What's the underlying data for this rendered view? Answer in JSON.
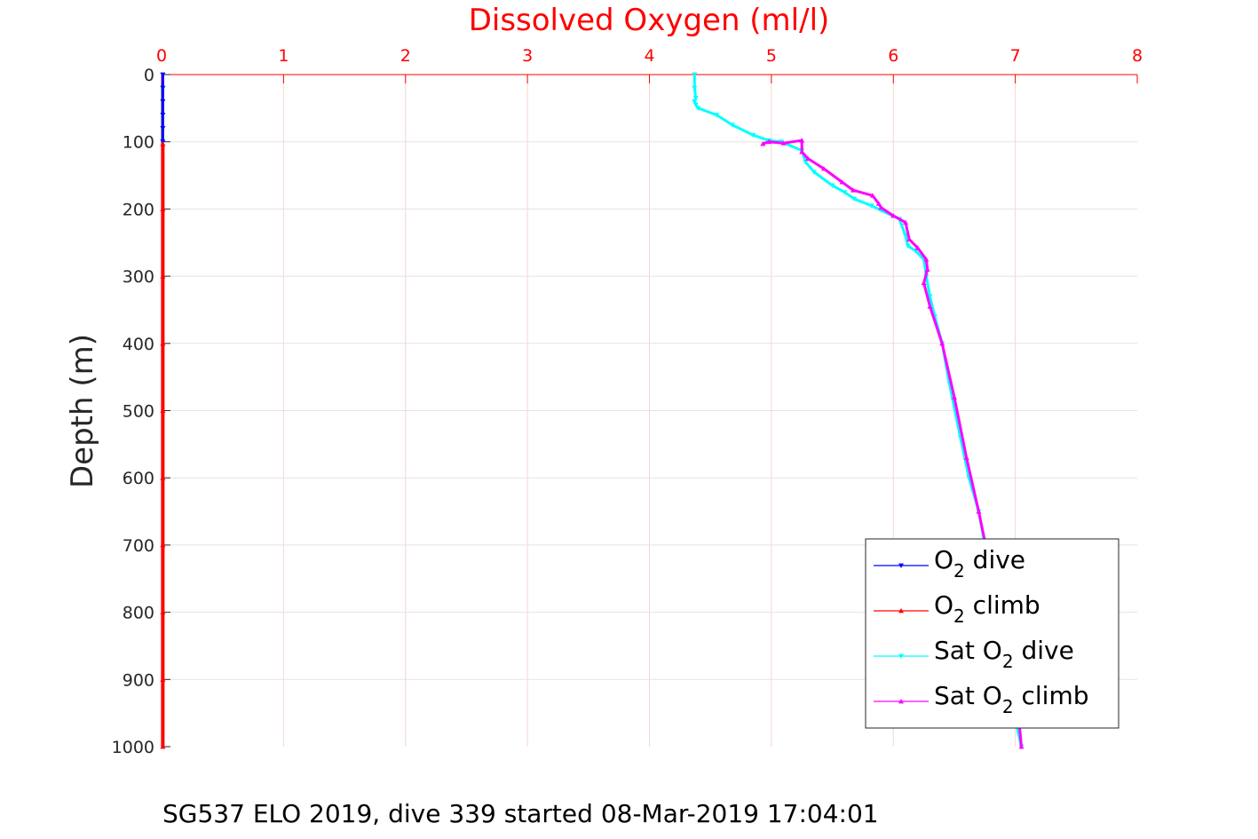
{
  "chart_data": {
    "type": "line",
    "title": "Dissolved Oxygen (ml/l)",
    "xlabel": "",
    "ylabel": "Depth (m)",
    "caption": "SG537 ELO 2019, dive 339 started 08-Mar-2019 17:04:01",
    "xlim": [
      0,
      8
    ],
    "ylim": [
      0,
      1000
    ],
    "y_reversed": true,
    "x_axis_location": "top",
    "grid": true,
    "xticks": [
      "0",
      "1",
      "2",
      "3",
      "4",
      "5",
      "6",
      "7",
      "8"
    ],
    "yticks": [
      "0",
      "100",
      "200",
      "300",
      "400",
      "500",
      "600",
      "700",
      "800",
      "900",
      "1000"
    ],
    "legend_position": "bottom-right",
    "series": [
      {
        "name": "O2 dive",
        "legend_base": "O",
        "legend_sub": "2",
        "legend_tail": " dive",
        "color": "#0000ff",
        "marker": "triangle-down",
        "x": [
          0.01,
          0.01,
          0.01,
          0.01,
          0.01,
          0.01
        ],
        "y": [
          0,
          20,
          40,
          60,
          80,
          100
        ]
      },
      {
        "name": "O2 climb",
        "legend_base": "O",
        "legend_sub": "2",
        "legend_tail": " climb",
        "color": "#ff0000",
        "marker": "triangle-up",
        "x": [
          0.01,
          0.01,
          0.01,
          0.01,
          0.01,
          0.01,
          0.01,
          0.01,
          0.01,
          0.01
        ],
        "y": [
          103,
          200,
          300,
          400,
          500,
          600,
          700,
          800,
          900,
          1000
        ]
      },
      {
        "name": "Sat O2 dive",
        "legend_base": "Sat O",
        "legend_sub": "2",
        "legend_tail": " dive",
        "color": "#00ffff",
        "marker": "triangle-down",
        "x": [
          4.37,
          4.37,
          4.38,
          4.37,
          4.38,
          4.4,
          4.55,
          4.68,
          4.85,
          4.98,
          5.08,
          5.25,
          5.28,
          5.35,
          5.5,
          5.6,
          5.68,
          5.82,
          5.9,
          6.05,
          6.1,
          6.12,
          6.18,
          6.25,
          6.27,
          6.3,
          6.34,
          6.4,
          6.46,
          6.55,
          6.62,
          6.7,
          6.75,
          6.85,
          6.93,
          7.0,
          7.05
        ],
        "y": [
          0,
          20,
          35,
          40,
          45,
          50,
          60,
          75,
          90,
          98,
          100,
          113,
          130,
          145,
          165,
          175,
          185,
          195,
          202,
          215,
          240,
          255,
          262,
          275,
          300,
          330,
          360,
          400,
          460,
          540,
          600,
          650,
          700,
          800,
          900,
          960,
          1000
        ]
      },
      {
        "name": "Sat O2 climb",
        "legend_base": "Sat O",
        "legend_sub": "2",
        "legend_tail": " climb",
        "color": "#ff00ff",
        "marker": "triangle-up",
        "x": [
          4.93,
          4.98,
          5.1,
          5.25,
          5.25,
          5.3,
          5.43,
          5.58,
          5.67,
          5.83,
          5.88,
          5.9,
          6.0,
          6.1,
          6.13,
          6.2,
          6.27,
          6.28,
          6.25,
          6.3,
          6.4,
          6.5,
          6.6,
          6.7,
          6.78,
          6.88,
          6.95,
          7.03,
          7.05
        ],
        "y": [
          103,
          100,
          102,
          98,
          115,
          125,
          140,
          160,
          172,
          180,
          192,
          198,
          210,
          220,
          245,
          258,
          275,
          290,
          310,
          345,
          400,
          480,
          570,
          650,
          720,
          820,
          900,
          960,
          1000
        ]
      }
    ]
  }
}
